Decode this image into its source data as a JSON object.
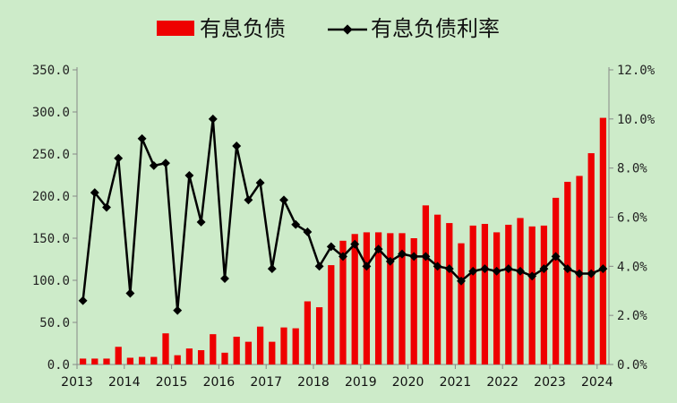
{
  "chart_data": {
    "type": "bar+line",
    "legend_position": "top",
    "grid": false,
    "x": [
      "2013Q1",
      "2013Q2",
      "2013Q3",
      "2013Q4",
      "2014Q1",
      "2014Q2",
      "2014Q3",
      "2014Q4",
      "2015Q1",
      "2015Q2",
      "2015Q3",
      "2015Q4",
      "2016Q1",
      "2016Q2",
      "2016Q3",
      "2016Q4",
      "2017Q1",
      "2017Q2",
      "2017Q3",
      "2017Q4",
      "2018Q1",
      "2018Q2",
      "2018Q3",
      "2018Q4",
      "2019Q1",
      "2019Q2",
      "2019Q3",
      "2019Q4",
      "2020Q1",
      "2020Q2",
      "2020Q3",
      "2020Q4",
      "2021Q1",
      "2021Q2",
      "2021Q3",
      "2021Q4",
      "2022Q1",
      "2022Q2",
      "2022Q3",
      "2022Q4",
      "2023Q1",
      "2023Q2",
      "2023Q3",
      "2023Q4",
      "2024Q1"
    ],
    "x_ticks": [
      "2013",
      "2014",
      "2015",
      "2016",
      "2017",
      "2018",
      "2019",
      "2020",
      "2021",
      "2022",
      "2023",
      "2024"
    ],
    "series": [
      {
        "name": "有息负债",
        "type": "bar",
        "axis": "left",
        "color": "#ee0000",
        "values": [
          7,
          7,
          7,
          21,
          8,
          9,
          9,
          37,
          11,
          19,
          17,
          36,
          14,
          33,
          27,
          45,
          27,
          44,
          43,
          75,
          68,
          118,
          147,
          155,
          157,
          157,
          156,
          156,
          150,
          189,
          178,
          168,
          144,
          165,
          167,
          157,
          166,
          174,
          164,
          165,
          198,
          217,
          224,
          251,
          293
        ]
      },
      {
        "name": "有息负债利率",
        "type": "line",
        "axis": "right",
        "color": "#000000",
        "values": [
          2.6,
          7.0,
          6.4,
          8.4,
          2.9,
          9.2,
          8.1,
          8.2,
          2.2,
          7.7,
          5.8,
          10.0,
          3.5,
          8.9,
          6.7,
          7.4,
          3.9,
          6.7,
          5.7,
          5.4,
          4.0,
          4.8,
          4.4,
          4.9,
          4.0,
          4.7,
          4.2,
          4.5,
          4.4,
          4.4,
          4.0,
          3.9,
          3.4,
          3.8,
          3.9,
          3.8,
          3.9,
          3.8,
          3.6,
          3.9,
          4.4,
          3.9,
          3.7,
          3.7,
          3.9
        ]
      }
    ],
    "y_left": {
      "min": 0,
      "max": 350,
      "ticks": [
        "0.0",
        "50.0",
        "100.0",
        "150.0",
        "200.0",
        "250.0",
        "300.0",
        "350.0"
      ]
    },
    "y_right": {
      "min": 0,
      "max": 12,
      "ticks": [
        "0.0%",
        "2.0%",
        "4.0%",
        "6.0%",
        "8.0%",
        "10.0%",
        "12.0%"
      ]
    }
  }
}
